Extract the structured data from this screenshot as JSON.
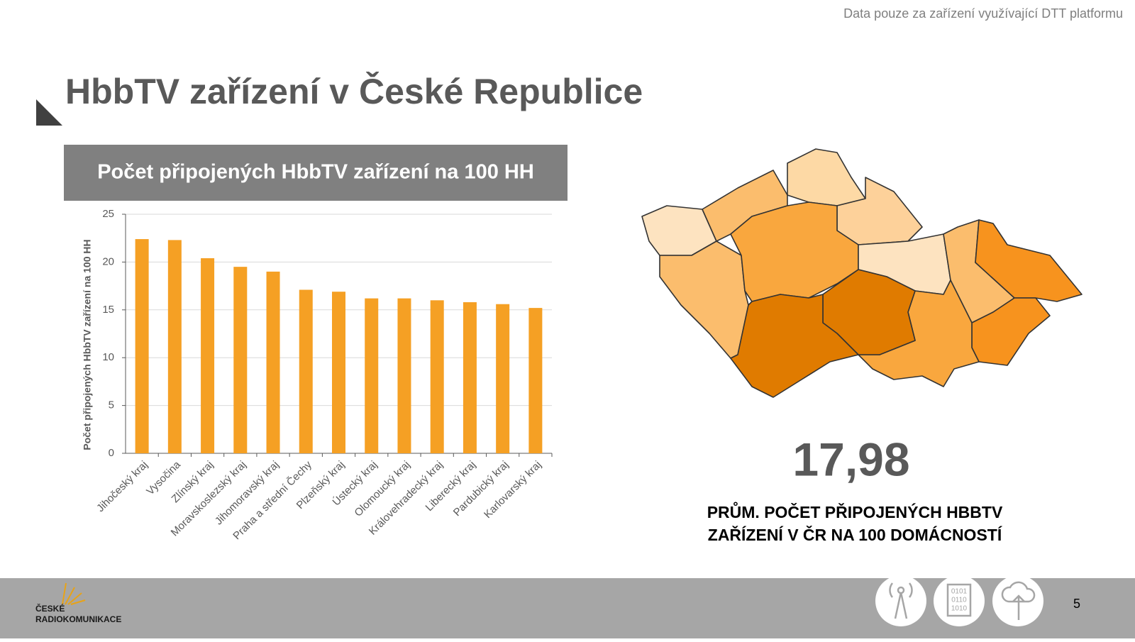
{
  "note": "Data pouze za zařízení využívající DTT platformu",
  "title": "HbbTV zařízení v České Republice",
  "chart_data": {
    "type": "bar",
    "title": "Počet připojených HbbTV zařízení na 100 HH",
    "y_label": "Počet připojených HbbTV zařízení na 100 HH",
    "categories": [
      "Jihočeský kraj",
      "Vysočina",
      "Zlínský kraj",
      "Moravskoslezský kraj",
      "Jihomoravský kraj",
      "Praha a střední Čechy",
      "Plzeňský kraj",
      "Ústecký kraj",
      "Olomoucký kraj",
      "Královehradecký kraj",
      "Liberecký kraj",
      "Pardubický kraj",
      "Karlovarský kraj"
    ],
    "values": [
      22.4,
      22.3,
      20.4,
      19.5,
      19.0,
      17.1,
      16.9,
      16.2,
      16.2,
      16.0,
      15.8,
      15.6,
      15.2
    ],
    "color": "#f5a024",
    "ylim": [
      0,
      25
    ],
    "yticks": [
      0,
      5,
      10,
      15,
      20,
      25
    ],
    "grid": true
  },
  "stat": {
    "value": "17,98",
    "caption": [
      "PRŮM. POČET PŘIPOJENÝCH HBBTV",
      "ZAŘÍZENÍ V ČR NA 100 DOMÁCNOSTÍ"
    ]
  },
  "footer": {
    "logo": [
      "ČESKÉ",
      "RADIOKOMUNIKACE"
    ],
    "icon_text": [
      "0101",
      "0110",
      "1010"
    ],
    "page": "5"
  }
}
